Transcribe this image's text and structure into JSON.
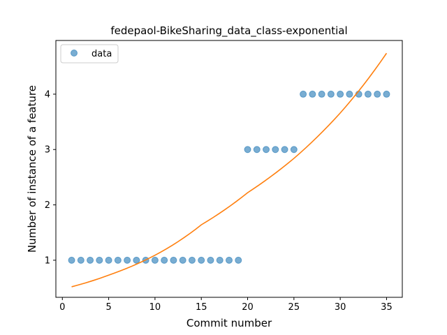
{
  "chart_data": {
    "type": "scatter",
    "title": "fedepaol-BikeSharing_data_class-exponential",
    "xlabel": "Commit number",
    "ylabel": "Number of instance of a feature",
    "xlim": [
      -0.7,
      36.7
    ],
    "ylim": [
      0.33,
      4.97
    ],
    "xticks": [
      0,
      5,
      10,
      15,
      20,
      25,
      30,
      35
    ],
    "yticks": [
      1,
      2,
      3,
      4
    ],
    "grid": false,
    "legend": {
      "position": "top-left",
      "entries": [
        "data"
      ]
    },
    "series": [
      {
        "name": "data",
        "kind": "points",
        "color": "#1f77b4",
        "x": [
          1,
          2,
          3,
          4,
          5,
          6,
          7,
          8,
          9,
          10,
          11,
          12,
          13,
          14,
          15,
          16,
          17,
          18,
          19,
          20,
          21,
          22,
          23,
          24,
          25,
          26,
          27,
          28,
          29,
          30,
          31,
          32,
          33,
          34,
          35
        ],
        "y": [
          1,
          1,
          1,
          1,
          1,
          1,
          1,
          1,
          1,
          1,
          1,
          1,
          1,
          1,
          1,
          1,
          1,
          1,
          1,
          3,
          3,
          3,
          3,
          3,
          3,
          4,
          4,
          4,
          4,
          4,
          4,
          4,
          4,
          4,
          4
        ]
      },
      {
        "kind": "line",
        "color": "#ff7f0e",
        "x": [
          1,
          5,
          10,
          15,
          20,
          25,
          30,
          35
        ],
        "y": [
          0.52,
          0.73,
          1.09,
          1.64,
          2.22,
          2.84,
          3.66,
          4.74
        ]
      }
    ]
  }
}
